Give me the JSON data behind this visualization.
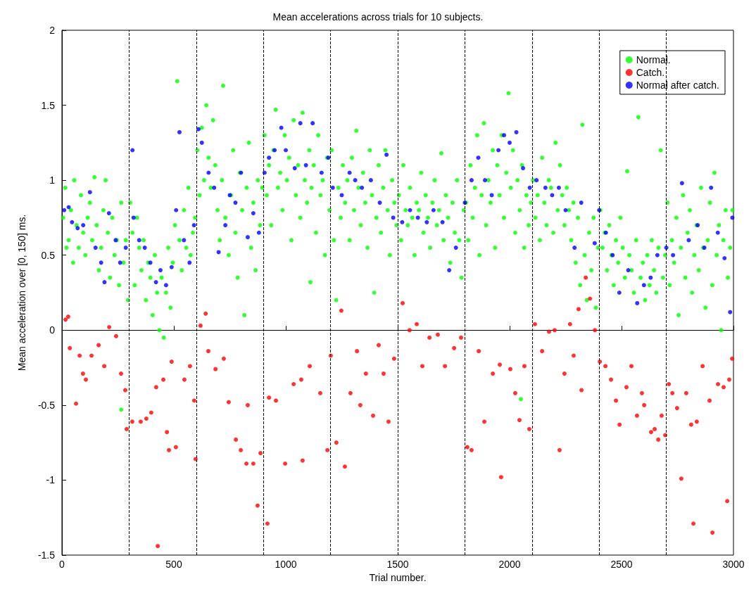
{
  "chart_data": {
    "type": "scatter",
    "title": "Mean accelerations across trials for 10 subjects.",
    "xlabel": "Trial number.",
    "ylabel": "Mean acceleration over [0, 150] ms.",
    "xlim": [
      0,
      3000
    ],
    "xticks": [
      0,
      500,
      1000,
      1500,
      2000,
      2500,
      3000
    ],
    "ylim": [
      -1.5,
      2
    ],
    "yticks": [
      -1.5,
      -1,
      -0.5,
      0,
      0.5,
      1,
      1.5,
      2
    ],
    "grid": false,
    "legend": "top right",
    "marker": "circle",
    "ref_lines": [
      {
        "axis": "x",
        "value": 300,
        "color": "#000000",
        "line_style": "dashed"
      },
      {
        "axis": "x",
        "value": 600,
        "color": "#000000",
        "line_style": "dashed"
      },
      {
        "axis": "x",
        "value": 900,
        "color": "#000000",
        "line_style": "dashed"
      },
      {
        "axis": "x",
        "value": 1200,
        "color": "#000000",
        "line_style": "dashed"
      },
      {
        "axis": "x",
        "value": 1500,
        "color": "#000000",
        "line_style": "dashed"
      },
      {
        "axis": "x",
        "value": 1800,
        "color": "#000000",
        "line_style": "dashed"
      },
      {
        "axis": "x",
        "value": 2100,
        "color": "#000000",
        "line_style": "dashed"
      },
      {
        "axis": "x",
        "value": 2400,
        "color": "#000000",
        "line_style": "dashed"
      },
      {
        "axis": "x",
        "value": 2700,
        "color": "#000000",
        "line_style": "dashed"
      }
    ],
    "series": [
      {
        "name": "Normal.",
        "color": "#00ff00",
        "x": [
          5,
          15,
          20,
          30,
          40,
          50,
          55,
          65,
          75,
          85,
          95,
          105,
          115,
          125,
          135,
          145,
          155,
          165,
          175,
          185,
          195,
          205,
          215,
          225,
          235,
          245,
          255,
          265,
          265,
          275,
          285,
          295,
          305,
          315,
          325,
          335,
          345,
          355,
          365,
          375,
          385,
          395,
          405,
          415,
          425,
          435,
          445,
          455,
          465,
          475,
          485,
          495,
          505,
          515,
          525,
          535,
          545,
          555,
          565,
          575,
          585,
          595,
          605,
          615,
          625,
          635,
          645,
          655,
          665,
          675,
          685,
          695,
          705,
          715,
          720,
          730,
          745,
          755,
          765,
          775,
          785,
          795,
          805,
          815,
          825,
          835,
          845,
          855,
          865,
          875,
          885,
          895,
          905,
          915,
          925,
          935,
          945,
          955,
          965,
          975,
          985,
          995,
          1005,
          1015,
          1025,
          1035,
          1045,
          1055,
          1065,
          1075,
          1085,
          1095,
          1105,
          1110,
          1115,
          1125,
          1135,
          1145,
          1155,
          1165,
          1175,
          1185,
          1195,
          1205,
          1215,
          1225,
          1235,
          1245,
          1255,
          1265,
          1275,
          1285,
          1295,
          1305,
          1315,
          1325,
          1335,
          1345,
          1355,
          1365,
          1375,
          1385,
          1395,
          1405,
          1415,
          1425,
          1435,
          1445,
          1455,
          1465,
          1475,
          1485,
          1495,
          1505,
          1515,
          1525,
          1535,
          1545,
          1555,
          1565,
          1575,
          1585,
          1595,
          1605,
          1615,
          1625,
          1635,
          1645,
          1655,
          1665,
          1675,
          1685,
          1695,
          1705,
          1715,
          1725,
          1735,
          1745,
          1755,
          1765,
          1775,
          1785,
          1795,
          1805,
          1815,
          1825,
          1835,
          1845,
          1855,
          1865,
          1875,
          1885,
          1895,
          1905,
          1915,
          1925,
          1935,
          1945,
          1955,
          1965,
          1975,
          1985,
          1995,
          2005,
          2015,
          2025,
          2035,
          2045,
          2050,
          2055,
          2065,
          2075,
          2085,
          2095,
          2105,
          2115,
          2125,
          2135,
          2145,
          2155,
          2165,
          2175,
          2185,
          2195,
          2205,
          2215,
          2225,
          2235,
          2245,
          2255,
          2265,
          2275,
          2285,
          2295,
          2305,
          2315,
          2325,
          2335,
          2345,
          2355,
          2365,
          2375,
          2385,
          2395,
          2405,
          2415,
          2425,
          2435,
          2445,
          2455,
          2465,
          2475,
          2485,
          2495,
          2505,
          2515,
          2525,
          2535,
          2545,
          2555,
          2565,
          2575,
          2585,
          2595,
          2605,
          2615,
          2625,
          2635,
          2645,
          2655,
          2665,
          2675,
          2685,
          2695,
          2705,
          2715,
          2725,
          2735,
          2745,
          2755,
          2765,
          2775,
          2785,
          2795,
          2805,
          2815,
          2825,
          2835,
          2845,
          2855,
          2865,
          2875,
          2885,
          2895,
          2905,
          2915,
          2925,
          2935,
          2945,
          2955,
          2965,
          2975,
          2985,
          2995
        ],
        "values": [
          0.75,
          0.95,
          0.55,
          0.6,
          0.8,
          0.45,
          1.0,
          0.7,
          0.55,
          0.9,
          0.65,
          0.5,
          0.75,
          0.85,
          0.6,
          1.02,
          0.7,
          0.4,
          0.55,
          0.8,
          1.0,
          0.65,
          0.35,
          0.75,
          0.5,
          0.6,
          0.3,
          0.85,
          -0.53,
          0.45,
          0.6,
          0.2,
          0.85,
          0.65,
          0.3,
          0.75,
          0.55,
          0.4,
          0.6,
          0.2,
          0.45,
          0.35,
          0.1,
          0.5,
          0.25,
          0.0,
          0.35,
          -0.05,
          0.25,
          0.55,
          0.15,
          0.45,
          0.7,
          1.66,
          0.6,
          0.4,
          0.8,
          0.55,
          0.95,
          0.5,
          0.65,
          0.75,
          1.2,
          0.9,
          1.35,
          1.0,
          1.5,
          1.15,
          0.95,
          1.4,
          1.1,
          0.8,
          0.6,
          1.0,
          1.63,
          0.75,
          0.5,
          0.9,
          1.2,
          0.65,
          0.35,
          1.05,
          0.8,
          0.1,
          0.95,
          1.25,
          0.55,
          0.85,
          0.4,
          1.0,
          0.7,
          0.95,
          1.3,
          0.9,
          1.1,
          0.7,
          1.2,
          1.47,
          0.95,
          1.05,
          0.8,
          1.3,
          1.0,
          1.15,
          0.6,
          1.4,
          0.9,
          1.1,
          0.75,
          1.45,
          1.0,
          0.85,
          1.2,
          0.32,
          0.95,
          1.1,
          0.65,
          1.3,
          0.9,
          1.0,
          0.5,
          1.15,
          0.8,
          1.2,
          0.6,
          0.2,
          0.95,
          0.75,
          1.1,
          0.85,
          1.0,
          0.6,
          1.15,
          0.8,
          1.33,
          0.95,
          0.7,
          1.05,
          0.85,
          0.55,
          1.2,
          0.9,
          0.25,
          0.75,
          1.1,
          0.65,
          0.95,
          1.2,
          0.8,
          0.5,
          1.0,
          0.85,
          0.7,
          0.9,
          0.6,
          1.1,
          0.8,
          0.7,
          0.95,
          0.75,
          0.5,
          0.85,
          0.8,
          1.05,
          0.65,
          0.9,
          0.75,
          0.55,
          0.85,
          1.0,
          0.7,
          0.8,
          1.18,
          0.6,
          0.9,
          0.75,
          0.45,
          0.85,
          0.65,
          1.0,
          0.6,
          0.35,
          0.8,
          0.85,
          0.6,
          1.1,
          0.75,
          0.95,
          1.3,
          0.5,
          0.9,
          1.38,
          0.7,
          1.0,
          0.85,
          1.2,
          0.55,
          1.1,
          0.9,
          1.3,
          0.75,
          1.05,
          1.58,
          0.95,
          1.2,
          0.65,
          1.0,
          0.8,
          -0.46,
          1.1,
          0.55,
          0.9,
          0.7,
          0.85,
          1.0,
          0.75,
          0.9,
          0.6,
          1.15,
          0.85,
          0.7,
          1.0,
          0.95,
          0.65,
          1.25,
          0.8,
          1.1,
          0.9,
          0.7,
          0.95,
          0.8,
          0.6,
          0.85,
          0.45,
          0.75,
          0.3,
          1.37,
          0.5,
          0.2,
          0.65,
          0.4,
          0.75,
          0.15,
          0.55,
          0.8,
          0.55,
          0.65,
          0.4,
          0.7,
          0.5,
          0.3,
          0.6,
          0.45,
          0.75,
          0.55,
          0.35,
          1.06,
          0.5,
          0.4,
          0.25,
          0.6,
          1.42,
          0.35,
          0.45,
          0.2,
          0.5,
          0.3,
          0.6,
          0.4,
          0.25,
          0.55,
          1.2,
          0.35,
          0.5,
          0.85,
          0.3,
          0.6,
          0.45,
          0.75,
          0.1,
          0.55,
          0.9,
          0.35,
          0.65,
          0.8,
          0.25,
          0.5,
          0.7,
          0.4,
          0.95,
          0.55,
          0.15,
          0.6,
          0.85,
          0.3,
          1.05,
          0.5,
          0.7,
          0.0,
          0.6,
          0.8,
          0.35,
          0.55,
          0.8
        ]
      },
      {
        "name": "Catch.",
        "color": "#ff0000",
        "x": [
          16,
          28,
          35,
          63,
          79,
          94,
          107,
          132,
          164,
          189,
          211,
          242,
          264,
          283,
          289,
          314,
          352,
          377,
          399,
          421,
          428,
          453,
          469,
          478,
          509,
          490,
          547,
          572,
          591,
          597,
          619,
          642,
          654,
          686,
          723,
          745,
          777,
          799,
          824,
          830,
          855,
          874,
          887,
          918,
          925,
          956,
          997,
          1035,
          1069,
          1075,
          1107,
          1154,
          1186,
          1201,
          1226,
          1248,
          1264,
          1289,
          1318,
          1333,
          1358,
          1390,
          1415,
          1437,
          1459,
          1484,
          1522,
          1553,
          1585,
          1610,
          1642,
          1679,
          1711,
          1752,
          1783,
          1811,
          1830,
          1862,
          1887,
          1925,
          1956,
          1962,
          2003,
          2025,
          2044,
          2066,
          2088,
          2113,
          2145,
          2176,
          2201,
          2223,
          2245,
          2270,
          2286,
          2308,
          2321,
          2340,
          2359,
          2381,
          2403,
          2428,
          2453,
          2475,
          2491,
          2522,
          2544,
          2569,
          2591,
          2601,
          2632,
          2648,
          2664,
          2679,
          2695,
          2711,
          2727,
          2748,
          2767,
          2789,
          2811,
          2821,
          2836,
          2862,
          2893,
          2906,
          2931,
          2956,
          2972,
          2981,
          2994
        ],
        "values": [
          0.07,
          0.09,
          -0.12,
          -0.49,
          -0.17,
          -0.29,
          -0.33,
          -0.17,
          -0.1,
          -0.24,
          0.02,
          -0.04,
          -0.29,
          -0.4,
          -0.66,
          -0.61,
          -0.61,
          -0.59,
          -0.55,
          -0.38,
          -1.44,
          -0.33,
          -0.68,
          -0.8,
          -0.78,
          -0.21,
          -0.33,
          -0.24,
          -0.47,
          -0.86,
          0.03,
          0.11,
          -0.14,
          -0.26,
          -0.19,
          -0.48,
          -0.73,
          -0.8,
          -0.89,
          -0.5,
          -0.89,
          -1.17,
          -0.82,
          -1.29,
          -0.45,
          -0.47,
          -0.89,
          -0.36,
          -0.33,
          -0.87,
          -0.24,
          -0.42,
          -0.8,
          -0.17,
          -0.75,
          0.13,
          -0.91,
          -0.42,
          -0.14,
          -0.5,
          -0.29,
          -0.57,
          -0.1,
          -0.29,
          -0.61,
          -0.19,
          0.18,
          0.0,
          0.04,
          -0.24,
          -0.05,
          -0.03,
          -0.24,
          -0.12,
          -0.05,
          -0.78,
          -0.8,
          -0.14,
          -0.61,
          -0.29,
          -0.23,
          -0.98,
          -0.26,
          -0.42,
          -0.6,
          -0.24,
          -0.66,
          0.04,
          -0.14,
          -0.01,
          0.0,
          -0.8,
          -0.29,
          0.04,
          -0.17,
          0.14,
          -0.4,
          0.35,
          0.21,
          0.0,
          -0.21,
          -0.24,
          -0.33,
          -0.47,
          -0.63,
          -0.38,
          -0.24,
          -0.57,
          -0.42,
          -0.5,
          -0.68,
          -0.66,
          -0.73,
          -0.57,
          -0.7,
          -0.36,
          -0.42,
          -0.52,
          -0.99,
          -0.42,
          -0.63,
          -1.29,
          -0.61,
          -0.24,
          -0.47,
          -1.35,
          -0.36,
          -0.38,
          -1.14,
          -0.33,
          -0.19
        ]
      },
      {
        "name": "Normal after catch.",
        "color": "#0000ff",
        "x": [
          10,
          30,
          45,
          70,
          95,
          125,
          150,
          175,
          190,
          210,
          240,
          260,
          285,
          315,
          320,
          345,
          370,
          395,
          420,
          440,
          465,
          490,
          510,
          525,
          545,
          570,
          590,
          610,
          625,
          655,
          680,
          700,
          730,
          750,
          775,
          800,
          830,
          855,
          880,
          905,
          925,
          950,
          980,
          1000,
          1040,
          1065,
          1090,
          1120,
          1160,
          1190,
          1210,
          1250,
          1285,
          1310,
          1340,
          1380,
          1420,
          1450,
          1480,
          1520,
          1555,
          1590,
          1630,
          1660,
          1700,
          1730,
          1760,
          1800,
          1830,
          1860,
          1890,
          1920,
          1950,
          1975,
          2000,
          2030,
          2060,
          2090,
          2120,
          2160,
          2190,
          2220,
          2250,
          2290,
          2320,
          2380,
          2400,
          2430,
          2460,
          2490,
          2530,
          2570,
          2600,
          2630,
          2660,
          2700,
          2730,
          2770,
          2800,
          2840,
          2870,
          2900,
          2930,
          2960,
          2985,
          2995
        ],
        "values": [
          0.8,
          0.82,
          0.72,
          0.68,
          0.7,
          0.92,
          0.55,
          0.45,
          0.32,
          0.78,
          0.6,
          0.45,
          0.55,
          1.2,
          0.75,
          0.6,
          0.55,
          0.45,
          0.32,
          0.4,
          0.3,
          0.42,
          0.8,
          1.32,
          0.6,
          0.45,
          0.7,
          1.34,
          1.25,
          1.05,
          0.95,
          0.52,
          0.7,
          0.9,
          0.85,
          1.05,
          0.62,
          0.78,
          0.65,
          1.05,
          1.15,
          1.2,
          1.35,
          1.2,
          1.08,
          1.38,
          1.1,
          1.38,
          1.05,
          1.15,
          0.95,
          0.9,
          1.05,
          1.0,
          0.95,
          1.0,
          0.85,
          1.17,
          0.75,
          0.72,
          0.8,
          0.75,
          0.72,
          0.8,
          0.72,
          0.4,
          0.55,
          0.85,
          1.0,
          1.15,
          1.0,
          0.9,
          1.2,
          1.3,
          1.25,
          1.32,
          1.08,
          0.95,
          1.0,
          0.95,
          0.9,
          0.95,
          0.8,
          0.55,
          0.85,
          0.58,
          0.8,
          0.65,
          0.5,
          0.25,
          0.4,
          0.18,
          0.3,
          0.35,
          0.5,
          0.55,
          0.5,
          0.98,
          0.6,
          0.7,
          0.55,
          0.95,
          0.65,
          0.48,
          0.12,
          0.75
        ]
      }
    ]
  }
}
